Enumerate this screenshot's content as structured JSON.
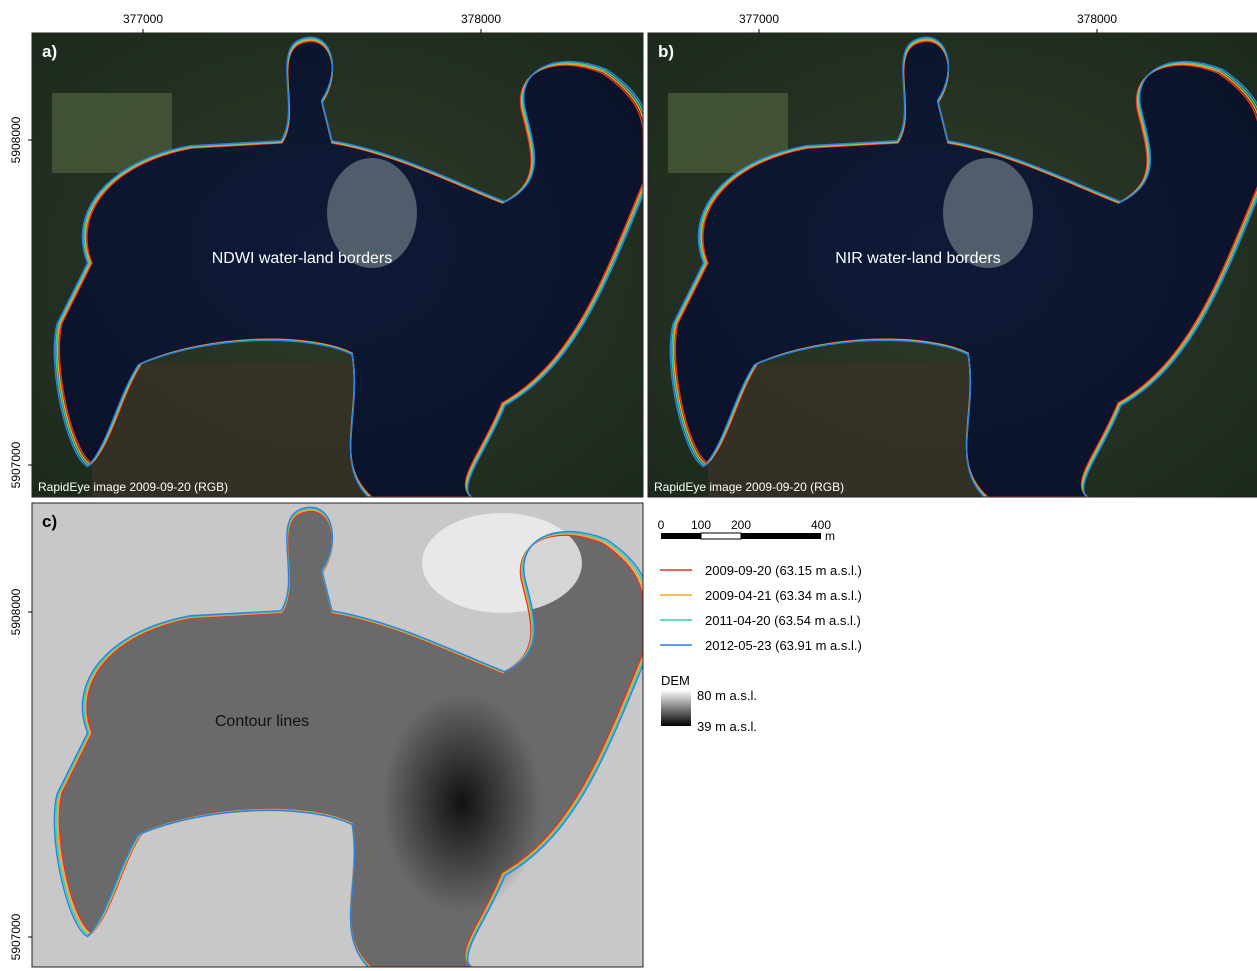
{
  "panels": [
    {
      "label": "a)",
      "caption": "NDWI water-land borders",
      "source": "RapidEye image 2009-09-20 (RGB)",
      "x_ticks": [
        "377000",
        "378000"
      ],
      "y_ticks": [
        "5908000",
        "5907000"
      ]
    },
    {
      "label": "b)",
      "caption": "NIR water-land borders",
      "source": "RapidEye image 2009-09-20 (RGB)",
      "x_ticks": [
        "377000",
        "378000"
      ]
    },
    {
      "label": "c)",
      "caption": "Contour lines",
      "y_ticks": [
        "5908000",
        "5907000"
      ]
    }
  ],
  "scale_bar": {
    "ticks": [
      "0",
      "100",
      "200",
      "400"
    ],
    "unit": "m"
  },
  "legend": [
    {
      "label": "2009-09-20 (63.15 m a.s.l.)",
      "color": "#e8302a"
    },
    {
      "label": "2009-04-21 (63.34 m a.s.l.)",
      "color": "#f5a623"
    },
    {
      "label": "2011-04-20 (63.54 m a.s.l.)",
      "color": "#2ed3a8"
    },
    {
      "label": "2012-05-23 (63.91 m a.s.l.)",
      "color": "#2f7fe0"
    }
  ],
  "dem_legend": {
    "title": "DEM",
    "high": "80 m a.s.l.",
    "low": "39 m a.s.l."
  }
}
